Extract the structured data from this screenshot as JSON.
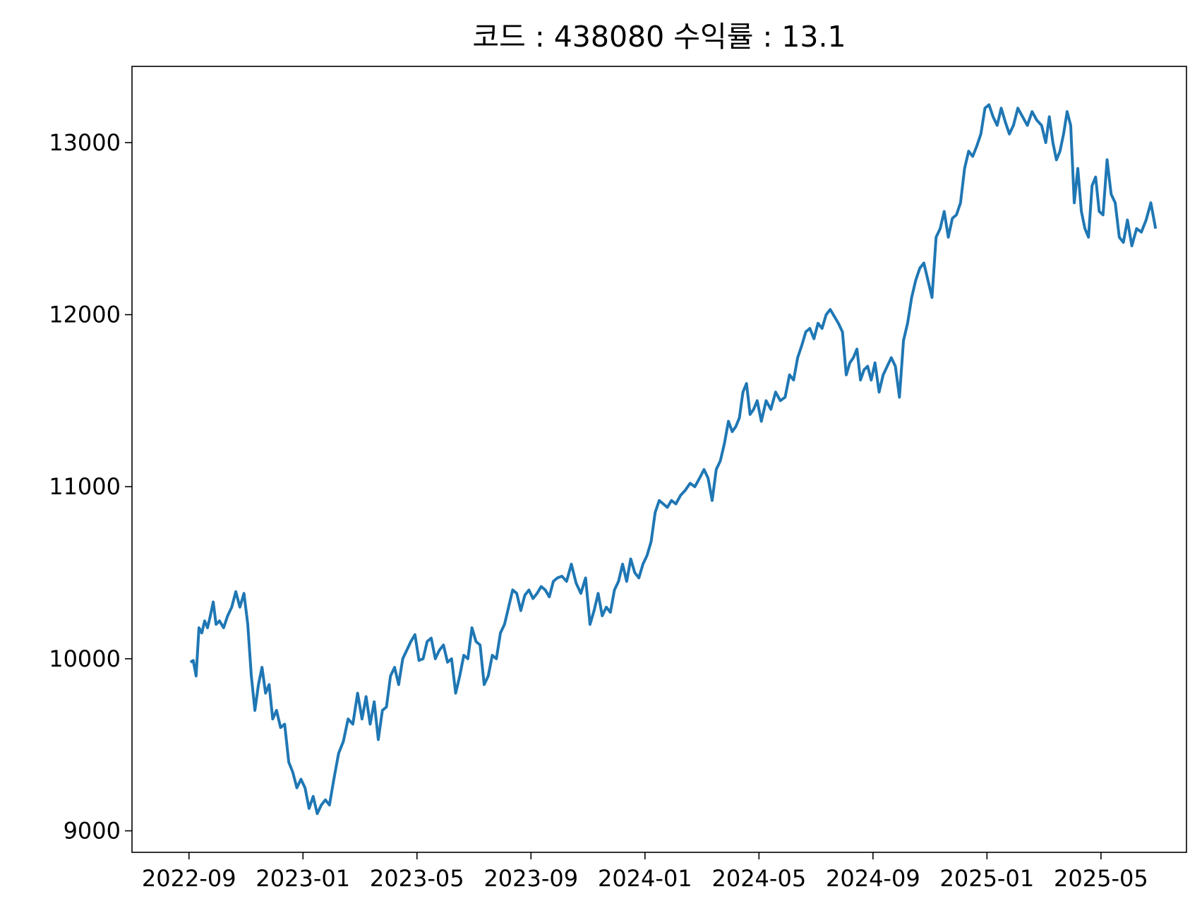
{
  "chart_data": {
    "type": "line",
    "title": "코드 : 438080 수익률 : 13.1",
    "xlim": [
      "2022-07",
      "2025-08"
    ],
    "xticks": [
      "2022-09",
      "2023-01",
      "2023-05",
      "2023-09",
      "2024-01",
      "2024-05",
      "2024-09",
      "2025-01",
      "2025-05"
    ],
    "ylim": [
      8875,
      13443
    ],
    "yticks": [
      9000,
      10000,
      11000,
      12000,
      13000
    ],
    "grid": false,
    "series": [
      {
        "name": "438080",
        "color": "#1f77b4",
        "x": [
          "2022-09",
          "2022-09",
          "2022-09",
          "2022-09",
          "2022-09",
          "2022-09",
          "2022-09",
          "2022-09",
          "2022-09",
          "2022-09",
          "2022-10",
          "2022-10",
          "2022-10",
          "2022-10",
          "2022-10",
          "2022-10",
          "2022-10",
          "2022-11",
          "2022-11",
          "2022-11",
          "2022-11",
          "2022-11",
          "2022-11",
          "2022-11",
          "2022-11",
          "2022-12",
          "2022-12",
          "2022-12",
          "2022-12",
          "2022-12",
          "2022-12",
          "2022-12",
          "2023-01",
          "2023-01",
          "2023-01",
          "2023-01",
          "2023-01",
          "2023-01",
          "2023-01",
          "2023-02",
          "2023-02",
          "2023-02",
          "2023-02",
          "2023-02",
          "2023-02",
          "2023-03",
          "2023-03",
          "2023-03",
          "2023-03",
          "2023-03",
          "2023-03",
          "2023-03",
          "2023-04",
          "2023-04",
          "2023-04",
          "2023-04",
          "2023-04",
          "2023-04",
          "2023-04",
          "2023-05",
          "2023-05",
          "2023-05",
          "2023-05",
          "2023-05",
          "2023-05",
          "2023-05",
          "2023-06",
          "2023-06",
          "2023-06",
          "2023-06",
          "2023-06",
          "2023-06",
          "2023-06",
          "2023-07",
          "2023-07",
          "2023-07",
          "2023-07",
          "2023-07",
          "2023-07",
          "2023-07",
          "2023-08",
          "2023-08",
          "2023-08",
          "2023-08",
          "2023-08",
          "2023-08",
          "2023-08",
          "2023-09",
          "2023-09",
          "2023-09",
          "2023-09",
          "2023-09",
          "2023-09",
          "2023-09",
          "2023-10",
          "2023-10",
          "2023-10",
          "2023-10",
          "2023-10",
          "2023-10",
          "2023-11",
          "2023-11",
          "2023-11",
          "2023-11",
          "2023-11",
          "2023-11",
          "2023-11",
          "2023-12",
          "2023-12",
          "2023-12",
          "2023-12",
          "2023-12",
          "2023-12",
          "2023-12",
          "2024-01",
          "2024-01",
          "2024-01",
          "2024-01",
          "2024-01",
          "2024-01",
          "2024-01",
          "2024-02",
          "2024-02",
          "2024-02",
          "2024-02",
          "2024-02",
          "2024-02",
          "2024-03",
          "2024-03",
          "2024-03",
          "2024-03",
          "2024-03",
          "2024-03",
          "2024-03",
          "2024-04",
          "2024-04",
          "2024-04",
          "2024-04",
          "2024-04",
          "2024-04",
          "2024-04",
          "2024-04",
          "2024-05",
          "2024-05",
          "2024-05",
          "2024-05",
          "2024-05",
          "2024-05",
          "2024-06",
          "2024-06",
          "2024-06",
          "2024-06",
          "2024-06",
          "2024-06",
          "2024-06",
          "2024-07",
          "2024-07",
          "2024-07",
          "2024-07",
          "2024-07",
          "2024-07",
          "2024-07",
          "2024-08",
          "2024-08",
          "2024-08",
          "2024-08",
          "2024-08",
          "2024-08",
          "2024-08",
          "2024-08",
          "2024-09",
          "2024-09",
          "2024-09",
          "2024-09",
          "2024-09",
          "2024-09",
          "2024-09",
          "2024-10",
          "2024-10",
          "2024-10",
          "2024-10",
          "2024-10",
          "2024-10",
          "2024-10",
          "2024-11",
          "2024-11",
          "2024-11",
          "2024-11",
          "2024-11",
          "2024-11",
          "2024-11",
          "2024-12",
          "2024-12",
          "2024-12",
          "2024-12",
          "2024-12",
          "2024-12",
          "2024-12",
          "2025-01",
          "2025-01",
          "2025-01",
          "2025-01",
          "2025-01",
          "2025-01",
          "2025-01",
          "2025-02",
          "2025-02",
          "2025-02",
          "2025-02",
          "2025-02",
          "2025-02",
          "2025-03",
          "2025-03",
          "2025-03",
          "2025-03",
          "2025-03",
          "2025-03",
          "2025-03",
          "2025-03",
          "2025-04",
          "2025-04",
          "2025-04",
          "2025-04",
          "2025-04",
          "2025-04",
          "2025-04",
          "2025-04",
          "2025-05",
          "2025-05",
          "2025-05",
          "2025-05",
          "2025-05",
          "2025-05",
          "2025-05",
          "2025-06",
          "2025-06",
          "2025-06",
          "2025-06",
          "2025-06",
          "2025-06"
        ],
        "values": [
          9980,
          9990,
          9900,
          10180,
          10150,
          10220,
          10180,
          10250,
          10330,
          10200,
          10220,
          10180,
          10250,
          10300,
          10390,
          10300,
          10380,
          10200,
          9900,
          9700,
          9850,
          9950,
          9800,
          9850,
          9650,
          9700,
          9600,
          9620,
          9400,
          9340,
          9250,
          9300,
          9250,
          9130,
          9200,
          9100,
          9150,
          9180,
          9150,
          9300,
          9450,
          9520,
          9650,
          9620,
          9800,
          9650,
          9780,
          9620,
          9750,
          9530,
          9700,
          9720,
          9900,
          9950,
          9850,
          10000,
          10050,
          10100,
          10140,
          9990,
          10000,
          10100,
          10120,
          10000,
          10050,
          10080,
          9980,
          10000,
          9800,
          9900,
          10020,
          10000,
          10180,
          10100,
          10080,
          9850,
          9900,
          10020,
          10000,
          10150,
          10200,
          10300,
          10400,
          10380,
          10280,
          10370,
          10400,
          10350,
          10380,
          10420,
          10400,
          10360,
          10450,
          10470,
          10480,
          10450,
          10550,
          10440,
          10380,
          10470,
          10200,
          10280,
          10380,
          10250,
          10300,
          10270,
          10400,
          10450,
          10550,
          10450,
          10580,
          10500,
          10470,
          10550,
          10600,
          10680,
          10850,
          10920,
          10900,
          10880,
          10920,
          10900,
          10950,
          10980,
          11020,
          11000,
          11050,
          11100,
          11050,
          10920,
          11100,
          11150,
          11250,
          11380,
          11320,
          11350,
          11400,
          11550,
          11600,
          11420,
          11450,
          11500,
          11380,
          11500,
          11450,
          11550,
          11500,
          11520,
          11650,
          11620,
          11750,
          11820,
          11900,
          11920,
          11860,
          11950,
          11920,
          12000,
          12030,
          11990,
          11950,
          11900,
          11650,
          11720,
          11750,
          11800,
          11620,
          11680,
          11700,
          11620,
          11720,
          11550,
          11650,
          11700,
          11750,
          11700,
          11520,
          11850,
          11950,
          12100,
          12200,
          12270,
          12300,
          12200,
          12100,
          12450,
          12500,
          12600,
          12450,
          12560,
          12580,
          12650,
          12850,
          12950,
          12920,
          12980,
          13050,
          13200,
          13220,
          13150,
          13100,
          13200,
          13120,
          13050,
          13100,
          13200,
          13150,
          13100,
          13180,
          13130,
          13100,
          13000,
          13150,
          13000,
          12900,
          12950,
          13050,
          13180,
          13100,
          12650,
          12850,
          12600,
          12500,
          12450,
          12750,
          12800,
          12600,
          12580,
          12900,
          12700,
          12650,
          12450,
          12420,
          12550,
          12400,
          12500,
          12480,
          12550,
          12650,
          12500
        ]
      }
    ]
  }
}
